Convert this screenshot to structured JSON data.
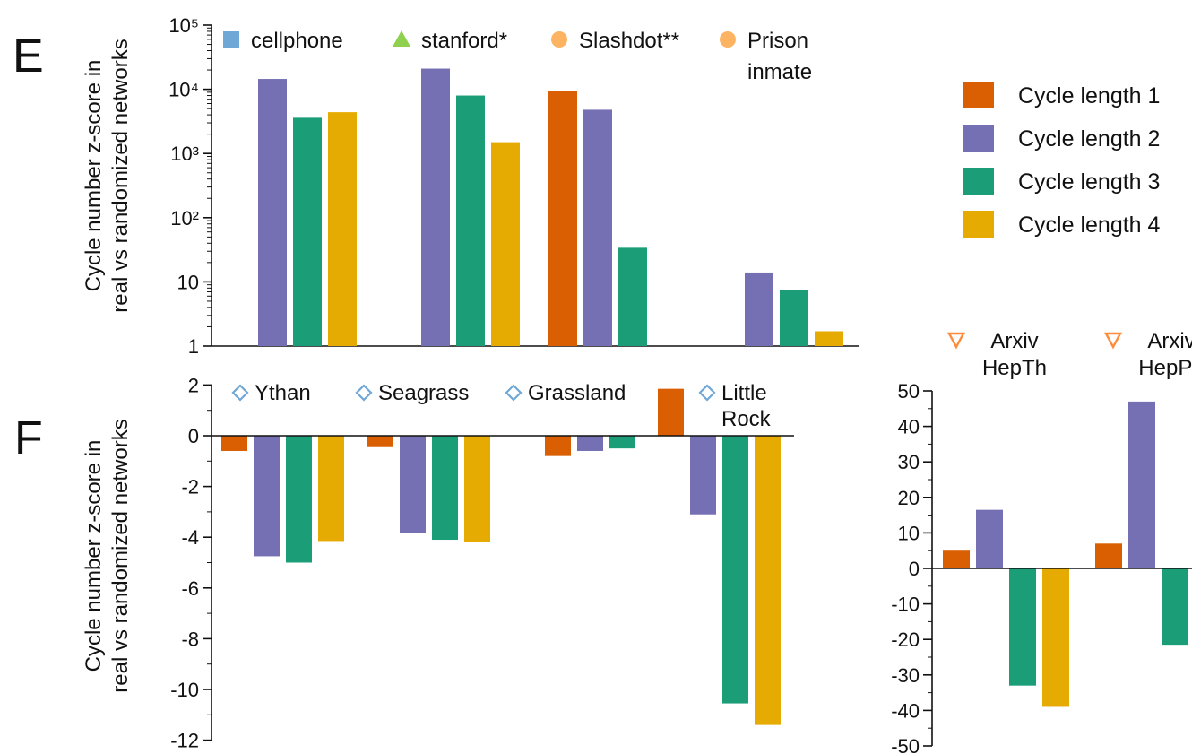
{
  "colors": {
    "cycle1": "#d95f02",
    "cycle2": "#7570b3",
    "cycle3": "#1b9e77",
    "cycle4": "#e6ab02",
    "cellphone_marker": "#6fa8d6",
    "stanford_marker": "#8fd14f",
    "circle_marker": "#fdb462",
    "diamond_marker": "#6fa8d6",
    "triangle_marker": "#fd8d3c"
  },
  "legend": {
    "items": [
      {
        "label": "Cycle length 1",
        "color": "#d95f02"
      },
      {
        "label": "Cycle length 2",
        "color": "#7570b3"
      },
      {
        "label": "Cycle length 3",
        "color": "#1b9e77"
      },
      {
        "label": "Cycle length 4",
        "color": "#e6ab02"
      }
    ]
  },
  "ylabel_line1": "Cycle number z-score in",
  "ylabel_line2": "real vs randomized networks",
  "chart_data": [
    {
      "panel": "E",
      "type": "bar",
      "log_scale": true,
      "ylim": [
        1,
        100000
      ],
      "yticks": [
        "1",
        "10",
        "10²",
        "10³",
        "10⁴",
        "10⁵"
      ],
      "ylabel": "Cycle number z-score in real vs randomized networks",
      "groups": [
        {
          "name": "cellphone",
          "label_lines": [
            "cellphone"
          ],
          "marker": "square",
          "marker_color": "#6fa8d6",
          "values": [
            null,
            14500,
            3600,
            4400
          ]
        },
        {
          "name": "stanford*",
          "label_lines": [
            "stanford*"
          ],
          "marker": "triangle",
          "marker_color": "#8fd14f",
          "values": [
            null,
            21000,
            8000,
            1500
          ]
        },
        {
          "name": "Slashdot**",
          "label_lines": [
            "Slashdot**"
          ],
          "marker": "circle",
          "marker_color": "#fdb462",
          "values": [
            9300,
            4800,
            34,
            null
          ]
        },
        {
          "name": "Prison inmate",
          "label_lines": [
            "Prison",
            "inmate"
          ],
          "marker": "circle",
          "marker_color": "#fdb462",
          "values": [
            null,
            14,
            7.5,
            1.7
          ]
        }
      ]
    },
    {
      "panel": "F",
      "type": "bar",
      "log_scale": false,
      "ylim": [
        -12,
        2
      ],
      "yticks": [
        "2",
        "0",
        "-2",
        "-4",
        "-6",
        "-8",
        "-10",
        "-12"
      ],
      "ylabel": "Cycle number z-score in real vs randomized networks",
      "groups": [
        {
          "name": "Ythan",
          "label_lines": [
            "Ythan"
          ],
          "marker": "diamond",
          "marker_color": "#6fa8d6",
          "values": [
            -0.6,
            -4.75,
            -5.0,
            -4.15
          ]
        },
        {
          "name": "Seagrass",
          "label_lines": [
            "Seagrass"
          ],
          "marker": "diamond",
          "marker_color": "#6fa8d6",
          "values": [
            -0.45,
            -3.85,
            -4.1,
            -4.2
          ]
        },
        {
          "name": "Grassland",
          "label_lines": [
            "Grassland"
          ],
          "marker": "diamond",
          "marker_color": "#6fa8d6",
          "values": [
            -0.8,
            -0.6,
            -0.5,
            null
          ]
        },
        {
          "name": "Little Rock",
          "label_lines": [
            "Little",
            "Rock"
          ],
          "marker": "diamond",
          "marker_color": "#6fa8d6",
          "values": [
            1.85,
            -3.1,
            -10.55,
            -11.4
          ]
        }
      ]
    },
    {
      "panel": "F-right",
      "type": "bar",
      "log_scale": false,
      "ylim": [
        -50,
        50
      ],
      "yticks": [
        "50",
        "40",
        "30",
        "20",
        "10",
        "0",
        "-10",
        "-20",
        "-30",
        "-40",
        "-50"
      ],
      "groups": [
        {
          "name": "Arxiv HepTh",
          "label_lines": [
            "Arxiv",
            "HepTh"
          ],
          "marker": "triangle-down",
          "marker_color": "#fd8d3c",
          "values": [
            5,
            16.5,
            -33,
            -39
          ]
        },
        {
          "name": "Arxiv HepPh",
          "label_lines": [
            "Arxiv",
            "HepPh"
          ],
          "marker": "triangle-down",
          "marker_color": "#fd8d3c",
          "values": [
            7,
            47,
            -21.5,
            null
          ]
        }
      ]
    }
  ],
  "panel_labels": {
    "E": "E",
    "F": "F"
  }
}
